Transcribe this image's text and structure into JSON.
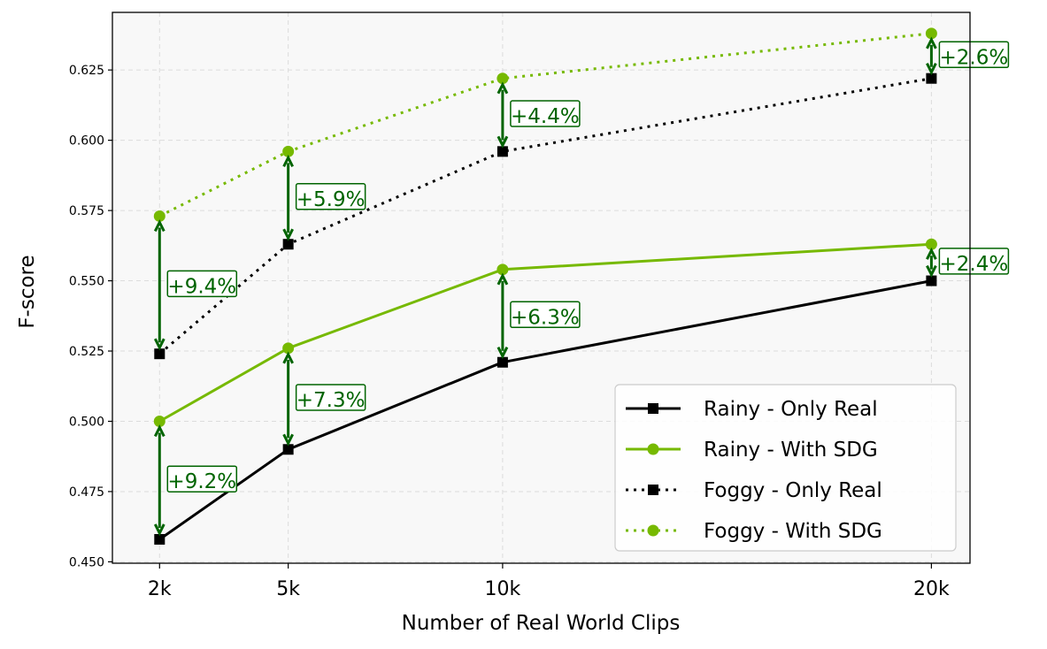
{
  "chart_data": {
    "type": "line",
    "xlabel": "Number of Real World Clips",
    "ylabel": "F-score",
    "x_positions": [
      2,
      5,
      10,
      20
    ],
    "categories": [
      "2k",
      "5k",
      "10k",
      "20k"
    ],
    "xlim": [
      0.9,
      20.9
    ],
    "ylim": [
      0.4495,
      0.6455
    ],
    "y_ticks": [
      0.45,
      0.475,
      0.5,
      0.525,
      0.55,
      0.575,
      0.6,
      0.625
    ],
    "y_tick_labels": [
      "0.450",
      "0.475",
      "0.500",
      "0.525",
      "0.550",
      "0.575",
      "0.600",
      "0.625"
    ],
    "grid": true,
    "legend_position": "lower-right",
    "series": [
      {
        "name": "Rainy - Only Real",
        "values": [
          0.458,
          0.49,
          0.521,
          0.55
        ],
        "color": "#000000",
        "style": "solid",
        "marker": "square"
      },
      {
        "name": "Rainy - With SDG",
        "values": [
          0.5,
          0.526,
          0.554,
          0.563
        ],
        "color": "#76b900",
        "style": "solid",
        "marker": "circle"
      },
      {
        "name": "Foggy - Only Real",
        "values": [
          0.524,
          0.563,
          0.596,
          0.622
        ],
        "color": "#000000",
        "style": "dotted",
        "marker": "square"
      },
      {
        "name": "Foggy - With SDG",
        "values": [
          0.573,
          0.596,
          0.622,
          0.638
        ],
        "color": "#76b900",
        "style": "dotted",
        "marker": "circle"
      }
    ],
    "annotations": [
      {
        "x": 2,
        "from": 0.458,
        "to": 0.5,
        "text": "+9.2%"
      },
      {
        "x": 5,
        "from": 0.49,
        "to": 0.526,
        "text": "+7.3%"
      },
      {
        "x": 10,
        "from": 0.521,
        "to": 0.554,
        "text": "+6.3%"
      },
      {
        "x": 20,
        "from": 0.55,
        "to": 0.563,
        "text": "+2.4%"
      },
      {
        "x": 2,
        "from": 0.524,
        "to": 0.573,
        "text": "+9.4%"
      },
      {
        "x": 5,
        "from": 0.563,
        "to": 0.596,
        "text": "+5.9%"
      },
      {
        "x": 10,
        "from": 0.596,
        "to": 0.622,
        "text": "+4.4%"
      },
      {
        "x": 20,
        "from": 0.622,
        "to": 0.638,
        "text": "+2.6%"
      }
    ],
    "annotation_color": "#006400"
  }
}
